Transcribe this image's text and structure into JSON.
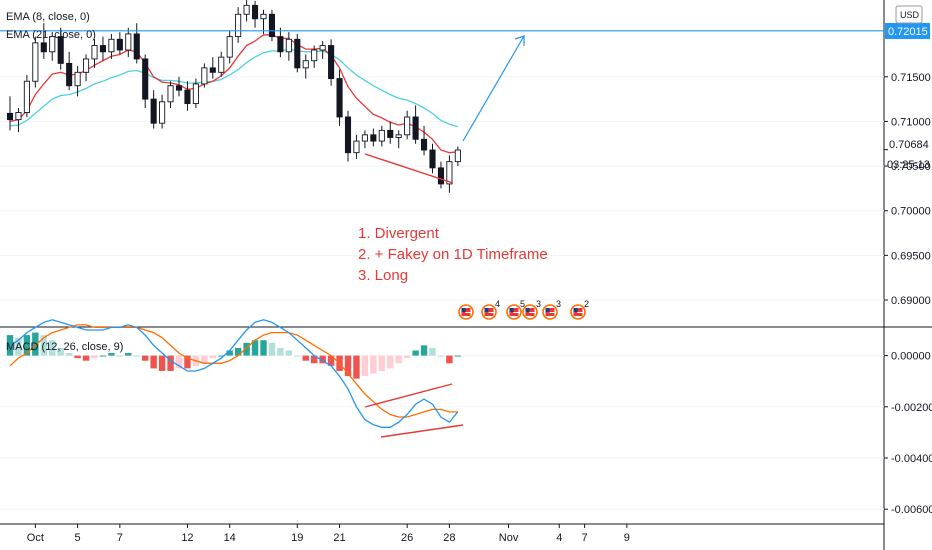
{
  "chart_data": [
    {
      "type": "candlestick",
      "legend": {
        "ema8": "EMA (8, close, 0)",
        "ema21": "EMA (21, close, 0)"
      },
      "currency_button": "USD",
      "price_axis": {
        "ticks": [
          "0.71500",
          "0.71000",
          "0.70500",
          "0.70000",
          "0.69500",
          "0.69000"
        ],
        "ylim": [
          0.6872,
          0.7236
        ]
      },
      "resistance": {
        "price": 0.72015,
        "label": "0.72015",
        "color": "#2196f3"
      },
      "last_price": {
        "label": "0.70684",
        "countdown": "03:25:13"
      },
      "annotations": [
        "1. Divergent",
        "2. + Fakey on 1D Timeframe",
        "3. Long"
      ],
      "event_flags": [
        {
          "label": "",
          "count": ""
        },
        {
          "label": "4",
          "count": ""
        },
        {
          "label": "5",
          "count": ""
        },
        {
          "label": "3",
          "count": ""
        },
        {
          "label": "3",
          "count": ""
        },
        {
          "label": "2",
          "count": ""
        }
      ],
      "candles": [
        {
          "o": 0.7109,
          "h": 0.7128,
          "l": 0.709,
          "c": 0.7102
        },
        {
          "o": 0.7102,
          "h": 0.7115,
          "l": 0.7088,
          "c": 0.711
        },
        {
          "o": 0.711,
          "h": 0.7152,
          "l": 0.7105,
          "c": 0.7145
        },
        {
          "o": 0.7145,
          "h": 0.7195,
          "l": 0.7138,
          "c": 0.7188
        },
        {
          "o": 0.7188,
          "h": 0.721,
          "l": 0.717,
          "c": 0.7178
        },
        {
          "o": 0.7178,
          "h": 0.72,
          "l": 0.7168,
          "c": 0.7195
        },
        {
          "o": 0.7195,
          "h": 0.7205,
          "l": 0.7158,
          "c": 0.7165
        },
        {
          "o": 0.7165,
          "h": 0.7178,
          "l": 0.7135,
          "c": 0.714
        },
        {
          "o": 0.714,
          "h": 0.7162,
          "l": 0.7128,
          "c": 0.7155
        },
        {
          "o": 0.7155,
          "h": 0.7175,
          "l": 0.7145,
          "c": 0.717
        },
        {
          "o": 0.717,
          "h": 0.7192,
          "l": 0.716,
          "c": 0.7185
        },
        {
          "o": 0.7185,
          "h": 0.7195,
          "l": 0.7168,
          "c": 0.7178
        },
        {
          "o": 0.7178,
          "h": 0.7198,
          "l": 0.717,
          "c": 0.7192
        },
        {
          "o": 0.7192,
          "h": 0.72,
          "l": 0.7175,
          "c": 0.718
        },
        {
          "o": 0.718,
          "h": 0.7205,
          "l": 0.7172,
          "c": 0.7198
        },
        {
          "o": 0.7198,
          "h": 0.721,
          "l": 0.7165,
          "c": 0.717
        },
        {
          "o": 0.717,
          "h": 0.7175,
          "l": 0.7115,
          "c": 0.7125
        },
        {
          "o": 0.7125,
          "h": 0.7135,
          "l": 0.7092,
          "c": 0.7098
        },
        {
          "o": 0.7098,
          "h": 0.713,
          "l": 0.7092,
          "c": 0.7122
        },
        {
          "o": 0.7122,
          "h": 0.7145,
          "l": 0.7115,
          "c": 0.714
        },
        {
          "o": 0.714,
          "h": 0.715,
          "l": 0.7128,
          "c": 0.7135
        },
        {
          "o": 0.7135,
          "h": 0.7145,
          "l": 0.7112,
          "c": 0.712
        },
        {
          "o": 0.712,
          "h": 0.7148,
          "l": 0.7115,
          "c": 0.7142
        },
        {
          "o": 0.7142,
          "h": 0.7165,
          "l": 0.7138,
          "c": 0.716
        },
        {
          "o": 0.716,
          "h": 0.7172,
          "l": 0.7148,
          "c": 0.7155
        },
        {
          "o": 0.7155,
          "h": 0.7178,
          "l": 0.715,
          "c": 0.7172
        },
        {
          "o": 0.7172,
          "h": 0.7202,
          "l": 0.7165,
          "c": 0.7195
        },
        {
          "o": 0.7195,
          "h": 0.7228,
          "l": 0.7188,
          "c": 0.722
        },
        {
          "o": 0.722,
          "h": 0.7238,
          "l": 0.7212,
          "c": 0.723
        },
        {
          "o": 0.723,
          "h": 0.7235,
          "l": 0.7205,
          "c": 0.7215
        },
        {
          "o": 0.7215,
          "h": 0.7225,
          "l": 0.7198,
          "c": 0.722
        },
        {
          "o": 0.722,
          "h": 0.7225,
          "l": 0.719,
          "c": 0.7195
        },
        {
          "o": 0.7195,
          "h": 0.7205,
          "l": 0.7172,
          "c": 0.7178
        },
        {
          "o": 0.7178,
          "h": 0.72,
          "l": 0.7168,
          "c": 0.7192
        },
        {
          "o": 0.7192,
          "h": 0.7198,
          "l": 0.7155,
          "c": 0.716
        },
        {
          "o": 0.716,
          "h": 0.7175,
          "l": 0.7148,
          "c": 0.7168
        },
        {
          "o": 0.7168,
          "h": 0.7185,
          "l": 0.716,
          "c": 0.718
        },
        {
          "o": 0.718,
          "h": 0.719,
          "l": 0.717,
          "c": 0.7185
        },
        {
          "o": 0.7185,
          "h": 0.7192,
          "l": 0.714,
          "c": 0.7148
        },
        {
          "o": 0.7148,
          "h": 0.7158,
          "l": 0.7095,
          "c": 0.7105
        },
        {
          "o": 0.7105,
          "h": 0.7112,
          "l": 0.7055,
          "c": 0.7065
        },
        {
          "o": 0.7065,
          "h": 0.7085,
          "l": 0.7058,
          "c": 0.7078
        },
        {
          "o": 0.7078,
          "h": 0.709,
          "l": 0.707,
          "c": 0.7085
        },
        {
          "o": 0.7085,
          "h": 0.7092,
          "l": 0.7072,
          "c": 0.7078
        },
        {
          "o": 0.7078,
          "h": 0.7095,
          "l": 0.7072,
          "c": 0.709
        },
        {
          "o": 0.709,
          "h": 0.71,
          "l": 0.7075,
          "c": 0.7082
        },
        {
          "o": 0.7082,
          "h": 0.709,
          "l": 0.707,
          "c": 0.7085
        },
        {
          "o": 0.7085,
          "h": 0.7112,
          "l": 0.708,
          "c": 0.7105
        },
        {
          "o": 0.7105,
          "h": 0.7118,
          "l": 0.7075,
          "c": 0.708
        },
        {
          "o": 0.708,
          "h": 0.7095,
          "l": 0.7062,
          "c": 0.7068
        },
        {
          "o": 0.7068,
          "h": 0.7075,
          "l": 0.7042,
          "c": 0.7048
        },
        {
          "o": 0.7048,
          "h": 0.7055,
          "l": 0.7025,
          "c": 0.703
        },
        {
          "o": 0.703,
          "h": 0.7062,
          "l": 0.702,
          "c": 0.7055
        },
        {
          "o": 0.7055,
          "h": 0.7072,
          "l": 0.705,
          "c": 0.7068
        }
      ],
      "ema8": [
        0.71,
        0.7102,
        0.7112,
        0.713,
        0.7142,
        0.7153,
        0.7155,
        0.7152,
        0.7153,
        0.7157,
        0.7163,
        0.7168,
        0.7173,
        0.7175,
        0.718,
        0.7178,
        0.7165,
        0.715,
        0.7144,
        0.7143,
        0.7141,
        0.7136,
        0.7137,
        0.7142,
        0.7145,
        0.7151,
        0.716,
        0.7173,
        0.7185,
        0.719,
        0.7197,
        0.7197,
        0.7193,
        0.7193,
        0.7186,
        0.7181,
        0.7181,
        0.7182,
        0.7174,
        0.716,
        0.7139,
        0.7126,
        0.7117,
        0.7108,
        0.7104,
        0.7099,
        0.7096,
        0.7098,
        0.7094,
        0.7088,
        0.708,
        0.7068,
        0.7065,
        0.7066
      ],
      "ema21": [
        0.7095,
        0.7096,
        0.7101,
        0.7109,
        0.7117,
        0.7125,
        0.7129,
        0.713,
        0.7133,
        0.7137,
        0.7142,
        0.7145,
        0.7149,
        0.7152,
        0.7156,
        0.7157,
        0.7154,
        0.7149,
        0.7146,
        0.7146,
        0.7145,
        0.7143,
        0.7143,
        0.7144,
        0.7145,
        0.7147,
        0.7152,
        0.7158,
        0.7166,
        0.7172,
        0.7177,
        0.7179,
        0.7179,
        0.7181,
        0.7179,
        0.7178,
        0.7178,
        0.7179,
        0.7175,
        0.7169,
        0.716,
        0.7152,
        0.7146,
        0.714,
        0.7135,
        0.713,
        0.7126,
        0.7124,
        0.712,
        0.7115,
        0.7109,
        0.7101,
        0.7097,
        0.7094
      ]
    },
    {
      "type": "macd",
      "legend": "MACD (12, 26, close, 9)",
      "price_axis": {
        "ticks": [
          "0.00000",
          "-0.00200",
          "-0.00400",
          "-0.00600"
        ],
        "ylim": [
          -0.0065,
          0.001
        ]
      },
      "x_ticks": [
        {
          "label": "Oct",
          "bar": 3
        },
        {
          "label": "5",
          "bar": 8
        },
        {
          "label": "7",
          "bar": 13
        },
        {
          "label": "12",
          "bar": 21
        },
        {
          "label": "14",
          "bar": 26
        },
        {
          "label": "19",
          "bar": 34
        },
        {
          "label": "21",
          "bar": 39
        },
        {
          "label": "26",
          "bar": 47
        },
        {
          "label": "28",
          "bar": 52
        },
        {
          "label": "Nov",
          "bar": 59
        },
        {
          "label": "4",
          "bar": 65
        },
        {
          "label": "7",
          "bar": 68
        },
        {
          "label": "9",
          "bar": 73
        }
      ],
      "histogram": [
        0.0008,
        0.0007,
        0.0008,
        0.0009,
        0.0008,
        0.0006,
        0.0003,
        0.0001,
        -0.0001,
        -0.0002,
        -0.0001,
        0.0,
        0.0001,
        0.0,
        0.0001,
        0.0,
        -0.0002,
        -0.0005,
        -0.0006,
        -0.0006,
        -0.0005,
        -0.0005,
        -0.0004,
        -0.0003,
        -0.0001,
        0.0,
        0.0002,
        0.0003,
        0.0005,
        0.0006,
        0.0006,
        0.0005,
        0.0003,
        0.0002,
        0.0,
        -0.0002,
        -0.0003,
        -0.0003,
        -0.0004,
        -0.0006,
        -0.0008,
        -0.0009,
        -0.0008,
        -0.0007,
        -0.0006,
        -0.0005,
        -0.0003,
        -0.0001,
        0.0002,
        0.0004,
        0.0003,
        0.0,
        -0.0003,
        0.0
      ],
      "macd": [
        0.0004,
        0.0006,
        0.0009,
        0.0011,
        0.0013,
        0.0014,
        0.0013,
        0.0012,
        0.0011,
        0.001,
        0.001,
        0.001,
        0.0011,
        0.0011,
        0.0012,
        0.0011,
        0.0008,
        0.0004,
        0.0001,
        -0.0002,
        -0.0004,
        -0.0006,
        -0.0006,
        -0.0005,
        -0.0003,
        -0.0001,
        0.0002,
        0.0006,
        0.001,
        0.0013,
        0.0014,
        0.0013,
        0.0011,
        0.0009,
        0.0006,
        0.0003,
        0.0,
        -0.0002,
        -0.0004,
        -0.0008,
        -0.0013,
        -0.002,
        -0.0025,
        -0.0027,
        -0.0028,
        -0.0028,
        -0.0026,
        -0.0023,
        -0.0019,
        -0.0017,
        -0.0019,
        -0.0024,
        -0.0026,
        -0.0022
      ],
      "signal": [
        -0.0004,
        -0.0001,
        0.0001,
        0.0004,
        0.0007,
        0.0009,
        0.001,
        0.0011,
        0.0012,
        0.0012,
        0.0011,
        0.0011,
        0.0011,
        0.0011,
        0.0011,
        0.0011,
        0.001,
        0.0009,
        0.0007,
        0.0004,
        0.0001,
        -0.0001,
        -0.0002,
        -0.0003,
        -0.0003,
        -0.0003,
        -0.0002,
        0.0,
        0.0003,
        0.0006,
        0.0008,
        0.0009,
        0.0009,
        0.0009,
        0.0008,
        0.0006,
        0.0004,
        0.0002,
        0.0,
        -0.0003,
        -0.0007,
        -0.0011,
        -0.0015,
        -0.0018,
        -0.0021,
        -0.0023,
        -0.0024,
        -0.0024,
        -0.0023,
        -0.0022,
        -0.0021,
        -0.0021,
        -0.0022,
        -0.0022
      ]
    }
  ],
  "colors": {
    "up": "#ffffff",
    "down": "#131722",
    "ema8": "#e53935",
    "ema21": "#4dd0e1",
    "hist_up_strong": "#26a69a",
    "hist_up_weak": "#b2dfdb",
    "hist_down_strong": "#ef5350",
    "hist_down_weak": "#ffcdd2",
    "macd": "#2196f3",
    "signal": "#ff6d00",
    "annotation": "#e53935",
    "arrow": "#2196f3"
  }
}
